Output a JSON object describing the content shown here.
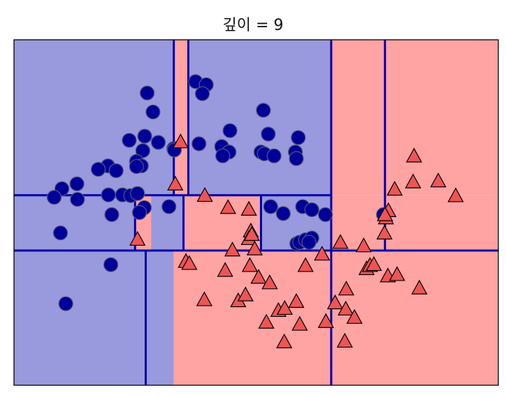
{
  "chart_data": {
    "type": "scatter",
    "title": "깊이 = 9",
    "xlabel": "",
    "ylabel": "",
    "xlim": [
      0,
      100
    ],
    "ylim": [
      0,
      100
    ],
    "grid": false,
    "axis_ticks": false,
    "colors": {
      "blue_region": "#9999DD",
      "red_region": "#FFA3A3",
      "boundary": "#0000AA",
      "class0_marker": "#000099",
      "class1_marker": "#EE5555",
      "marker_edge": "#000000"
    },
    "decision_regions": [
      {
        "class": 0,
        "x": [
          0,
          33
        ],
        "y": [
          0,
          39
        ]
      },
      {
        "class": 1,
        "x": [
          33,
          100
        ],
        "y": [
          0,
          39
        ]
      },
      {
        "class": 0,
        "x": [
          0,
          25
        ],
        "y": [
          39,
          55
        ]
      },
      {
        "class": 1,
        "x": [
          25,
          28.3
        ],
        "y": [
          39,
          55
        ]
      },
      {
        "class": 0,
        "x": [
          28.3,
          35
        ],
        "y": [
          39,
          55
        ]
      },
      {
        "class": 1,
        "x": [
          35,
          51
        ],
        "y": [
          39,
          55
        ]
      },
      {
        "class": 0,
        "x": [
          51,
          65.5
        ],
        "y": [
          39,
          55
        ]
      },
      {
        "class": 1,
        "x": [
          65.5,
          100
        ],
        "y": [
          39,
          55
        ]
      },
      {
        "class": 0,
        "x": [
          0,
          33
        ],
        "y": [
          55,
          100
        ]
      },
      {
        "class": 1,
        "x": [
          33,
          36
        ],
        "y": [
          55,
          100
        ]
      },
      {
        "class": 0,
        "x": [
          36,
          65.5
        ],
        "y": [
          55,
          100
        ]
      },
      {
        "class": 1,
        "x": [
          65.5,
          100
        ],
        "y": [
          55,
          100
        ]
      }
    ],
    "boundaries": [
      {
        "orientation": "h",
        "value": 39,
        "range": [
          0,
          100
        ]
      },
      {
        "orientation": "h",
        "value": 55,
        "range": [
          0,
          65.5
        ]
      },
      {
        "orientation": "v",
        "value": 65.5,
        "range": [
          0,
          100
        ]
      },
      {
        "orientation": "v",
        "value": 27.2,
        "range": [
          0,
          39
        ]
      },
      {
        "orientation": "v",
        "value": 33,
        "range": [
          55,
          100
        ]
      },
      {
        "orientation": "v",
        "value": 36,
        "range": [
          55,
          100
        ]
      },
      {
        "orientation": "v",
        "value": 25,
        "range": [
          39,
          55
        ]
      },
      {
        "orientation": "v",
        "value": 35,
        "range": [
          39,
          55
        ]
      },
      {
        "orientation": "v",
        "value": 51,
        "range": [
          39,
          55
        ]
      },
      {
        "orientation": "v",
        "value": 76.6,
        "range": [
          39,
          100
        ]
      }
    ],
    "series": [
      {
        "marker": "circle",
        "class": 0,
        "points": [
          [
            27.5,
            84.6
          ],
          [
            37.5,
            87.9
          ],
          [
            39.7,
            87.0
          ],
          [
            28.7,
            79.1
          ],
          [
            38.9,
            84.4
          ],
          [
            51.5,
            79.6
          ],
          [
            44.6,
            73.7
          ],
          [
            52.5,
            72.7
          ],
          [
            58.7,
            71.7
          ],
          [
            27.0,
            72.1
          ],
          [
            29.8,
            70.3
          ],
          [
            23.8,
            70.9
          ],
          [
            26.6,
            67.9
          ],
          [
            33.0,
            68.5
          ],
          [
            33.1,
            68.1
          ],
          [
            38.2,
            69.9
          ],
          [
            42.9,
            69.1
          ],
          [
            44.4,
            67.5
          ],
          [
            43.1,
            66.4
          ],
          [
            51.0,
            67.5
          ],
          [
            51.7,
            67.0
          ],
          [
            53.7,
            66.4
          ],
          [
            58.1,
            67.5
          ],
          [
            58.3,
            65.6
          ],
          [
            25.3,
            64.8
          ],
          [
            19.4,
            63.5
          ],
          [
            26.3,
            63.5
          ],
          [
            25.3,
            63.3
          ],
          [
            21.1,
            62.1
          ],
          [
            17.4,
            62.5
          ],
          [
            13.0,
            58.3
          ],
          [
            9.9,
            56.9
          ],
          [
            8.3,
            54.4
          ],
          [
            13.1,
            53.8
          ],
          [
            19.5,
            55.1
          ],
          [
            22.4,
            55.1
          ],
          [
            24.1,
            54.9
          ],
          [
            25.5,
            55.5
          ],
          [
            26.9,
            51.4
          ],
          [
            25.9,
            50.0
          ],
          [
            20.2,
            49.4
          ],
          [
            32.0,
            51.7
          ],
          [
            53.0,
            51.7
          ],
          [
            55.6,
            49.7
          ],
          [
            59.6,
            51.7
          ],
          [
            61.5,
            50.8
          ],
          [
            64.3,
            49.4
          ],
          [
            9.6,
            44.1
          ],
          [
            58.4,
            41.0
          ],
          [
            59.0,
            41.4
          ],
          [
            60.2,
            42.1
          ],
          [
            61.5,
            42.6
          ],
          [
            60.9,
            41.4
          ],
          [
            76.3,
            49.4
          ],
          [
            20.0,
            34.9
          ],
          [
            10.7,
            23.6
          ]
        ]
      },
      {
        "marker": "triangle",
        "class": 1,
        "points": [
          [
            34.4,
            70.3
          ],
          [
            33.3,
            58.1
          ],
          [
            39.4,
            54.8
          ],
          [
            44.2,
            51.3
          ],
          [
            48.5,
            50.8
          ],
          [
            48.9,
            44.5
          ],
          [
            48.5,
            42.3
          ],
          [
            49.1,
            43.5
          ],
          [
            25.5,
            42.1
          ],
          [
            35.5,
            35.7
          ],
          [
            36.2,
            35.1
          ],
          [
            45.1,
            39.0
          ],
          [
            49.7,
            39.3
          ],
          [
            60.2,
            34.5
          ],
          [
            63.6,
            37.8
          ],
          [
            67.4,
            41.2
          ],
          [
            72.2,
            40.2
          ],
          [
            43.6,
            33.1
          ],
          [
            48.7,
            34.5
          ],
          [
            50.5,
            31.1
          ],
          [
            52.8,
            29.5
          ],
          [
            39.3,
            24.6
          ],
          [
            46.3,
            24.3
          ],
          [
            47.8,
            26.0
          ],
          [
            54.6,
            21.5
          ],
          [
            55.9,
            22.1
          ],
          [
            58.3,
            24.1
          ],
          [
            52.1,
            18.1
          ],
          [
            59.0,
            17.5
          ],
          [
            64.4,
            18.3
          ],
          [
            68.6,
            27.7
          ],
          [
            66.3,
            23.7
          ],
          [
            68.5,
            21.9
          ],
          [
            70.3,
            19.5
          ],
          [
            55.8,
            12.4
          ],
          [
            68.3,
            12.6
          ],
          [
            72.8,
            33.6
          ],
          [
            73.5,
            34.5
          ],
          [
            74.3,
            34.8
          ],
          [
            77.2,
            31.5
          ],
          [
            79.1,
            31.9
          ],
          [
            83.7,
            28.0
          ],
          [
            76.8,
            48.3
          ],
          [
            77.3,
            50.4
          ],
          [
            76.5,
            43.9
          ],
          [
            78.6,
            56.6
          ],
          [
            82.4,
            58.7
          ],
          [
            87.6,
            59.0
          ],
          [
            91.2,
            54.7
          ],
          [
            82.6,
            66.2
          ],
          [
            76.6,
            49.2
          ]
        ]
      }
    ]
  }
}
